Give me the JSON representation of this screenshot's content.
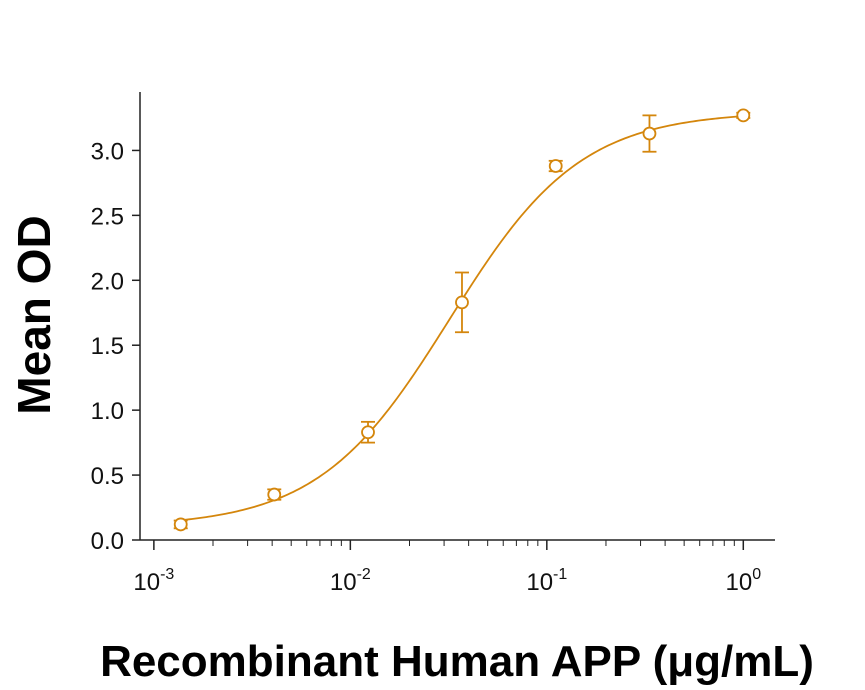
{
  "chart_data": {
    "type": "scatter",
    "title": "",
    "xlabel": "Recombinant Human APP (μg/mL)",
    "ylabel": "Mean OD",
    "x_scale": "log",
    "xlim": [
      0.00085,
      1.45
    ],
    "ylim": [
      0.0,
      3.45
    ],
    "x_ticks": [
      {
        "value": 0.001,
        "base": "10",
        "exp": "-3"
      },
      {
        "value": 0.01,
        "base": "10",
        "exp": "-2"
      },
      {
        "value": 0.1,
        "base": "10",
        "exp": "-1"
      },
      {
        "value": 1,
        "base": "10",
        "exp": "0"
      }
    ],
    "y_ticks": [
      {
        "value": 0.0,
        "label": "0.0"
      },
      {
        "value": 0.5,
        "label": "0.5"
      },
      {
        "value": 1.0,
        "label": "1.0"
      },
      {
        "value": 1.5,
        "label": "1.5"
      },
      {
        "value": 2.0,
        "label": "2.0"
      },
      {
        "value": 2.5,
        "label": "2.5"
      },
      {
        "value": 3.0,
        "label": "3.0"
      }
    ],
    "grid": false,
    "legend": "none",
    "color": "#D4860C",
    "series": [
      {
        "points": [
          {
            "x": 0.00137,
            "y": 0.12,
            "err": 0.03
          },
          {
            "x": 0.0041,
            "y": 0.35,
            "err": 0.04
          },
          {
            "x": 0.0123,
            "y": 0.83,
            "err": 0.08
          },
          {
            "x": 0.037,
            "y": 1.83,
            "err": 0.23
          },
          {
            "x": 0.111,
            "y": 2.88,
            "err": 0.04
          },
          {
            "x": 0.333,
            "y": 3.13,
            "err": 0.14
          },
          {
            "x": 1.0,
            "y": 3.27,
            "err": 0.02
          }
        ]
      }
    ],
    "fit": {
      "model": "4PL",
      "bottom": 0.1,
      "top": 3.3,
      "ec50": 0.032,
      "hill": 1.3
    }
  }
}
